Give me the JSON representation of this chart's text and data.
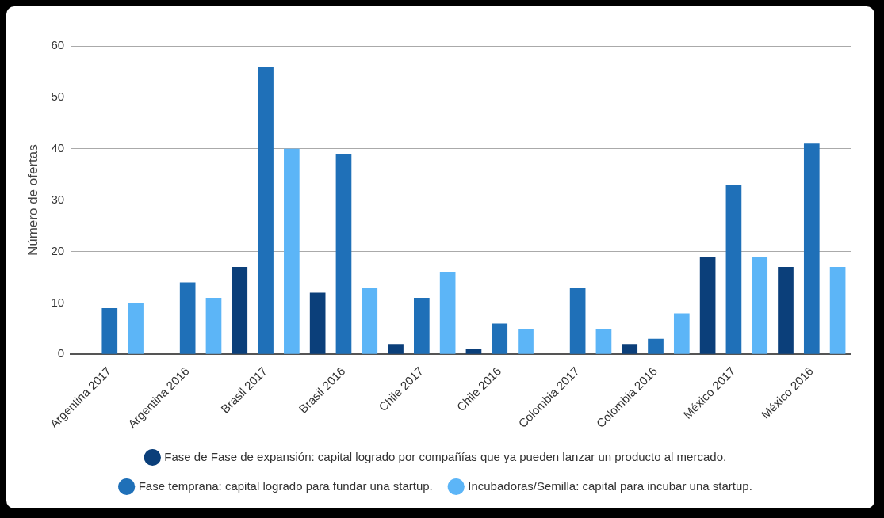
{
  "chart_data": {
    "type": "bar",
    "ylabel": "Número de ofertas",
    "categories": [
      "Argentina 2017",
      "Argentina 2016",
      "Brasil 2017",
      "Brasil 2016",
      "Chile 2017",
      "Chile 2016",
      "Colombia 2017",
      "Colombia 2016",
      "México 2017",
      "México 2016"
    ],
    "series": [
      {
        "name": "Fase de Fase de expansión: capital logrado por compañías que ya pueden lanzar un producto al mercado.",
        "color": "#0b3f7a",
        "values": [
          0,
          0,
          17,
          12,
          2,
          1,
          0,
          2,
          19,
          17
        ]
      },
      {
        "name": "Fase temprana: capital logrado para fundar una startup.",
        "color": "#1f70b8",
        "values": [
          9,
          14,
          56,
          39,
          11,
          6,
          13,
          3,
          33,
          41
        ]
      },
      {
        "name": "Incubadoras/Semilla: capital para incubar una startup.",
        "color": "#5cb5f7",
        "values": [
          10,
          11,
          40,
          13,
          16,
          5,
          5,
          8,
          19,
          17
        ]
      }
    ],
    "ylim": [
      0,
      60
    ],
    "yticks": [
      0,
      10,
      20,
      30,
      40,
      50,
      60
    ],
    "grid": "y",
    "legend": "bottom"
  }
}
